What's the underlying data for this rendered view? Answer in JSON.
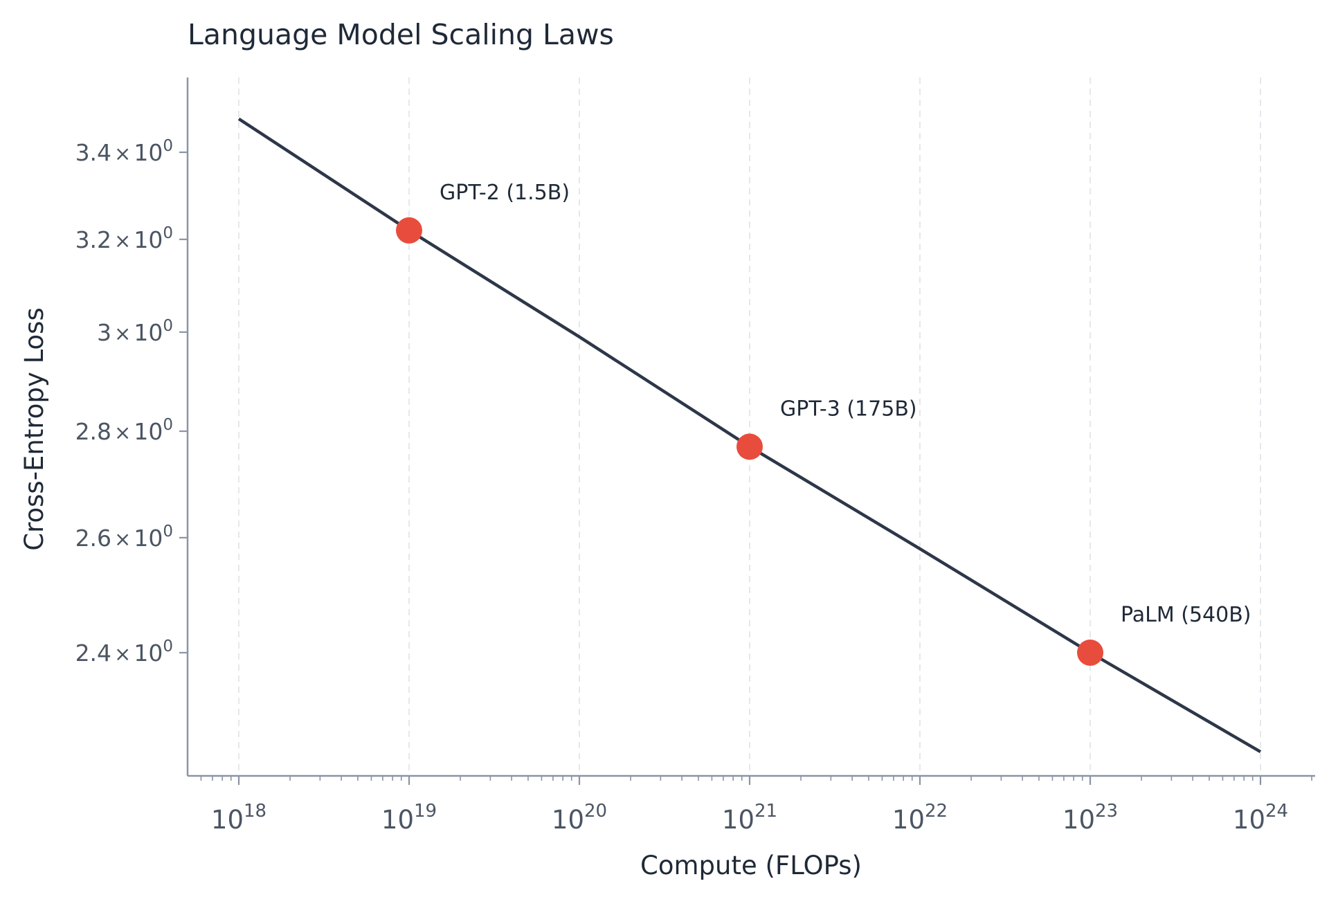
{
  "chart_data": {
    "type": "line",
    "title": "Language Model Scaling Laws",
    "xlabel": "Compute (FLOPs)",
    "ylabel": "Cross-Entropy Loss",
    "x_scale": "log",
    "y_scale": "log",
    "xlim": [
      3.2e+17,
      3.2e+24
    ],
    "ylim": [
      2.21,
      3.55
    ],
    "grid": "vertical dashed lines at major x ticks",
    "colors": {
      "line": "#2d3748",
      "points": "#e84c3d",
      "grid": "#e5e7eb",
      "axis": "#8a94a6"
    },
    "x_ticks": [
      {
        "value": 1e+18,
        "base": "10",
        "exp": "18"
      },
      {
        "value": 1e+19,
        "base": "10",
        "exp": "19"
      },
      {
        "value": 1e+20,
        "base": "10",
        "exp": "20"
      },
      {
        "value": 1e+21,
        "base": "10",
        "exp": "21"
      },
      {
        "value": 1e+22,
        "base": "10",
        "exp": "22"
      },
      {
        "value": 1e+23,
        "base": "10",
        "exp": "23"
      },
      {
        "value": 1e+24,
        "base": "10",
        "exp": "24"
      }
    ],
    "y_ticks": [
      {
        "value": 3.4,
        "mant": "3.4",
        "times": "×",
        "base": "10",
        "exp": "0"
      },
      {
        "value": 3.2,
        "mant": "3.2",
        "times": "×",
        "base": "10",
        "exp": "0"
      },
      {
        "value": 3.0,
        "mant": "3",
        "times": "×",
        "base": "10",
        "exp": "0"
      },
      {
        "value": 2.8,
        "mant": "2.8",
        "times": "×",
        "base": "10",
        "exp": "0"
      },
      {
        "value": 2.6,
        "mant": "2.6",
        "times": "×",
        "base": "10",
        "exp": "0"
      },
      {
        "value": 2.4,
        "mant": "2.4",
        "times": "×",
        "base": "10",
        "exp": "0"
      }
    ],
    "series": [
      {
        "type": "line",
        "x": [
          1e+18,
          1e+19,
          1e+20,
          1e+21,
          1e+22,
          1e+23,
          1e+24
        ],
        "y": [
          3.48,
          3.22,
          2.99,
          2.77,
          2.58,
          2.4,
          2.24
        ]
      }
    ],
    "points": [
      {
        "label": "GPT-2 (1.5B)",
        "x": 1e+19,
        "y": 3.22
      },
      {
        "label": "GPT-3 (175B)",
        "x": 1e+21,
        "y": 2.77
      },
      {
        "label": "PaLM (540B)",
        "x": 1e+23,
        "y": 2.4
      }
    ]
  }
}
